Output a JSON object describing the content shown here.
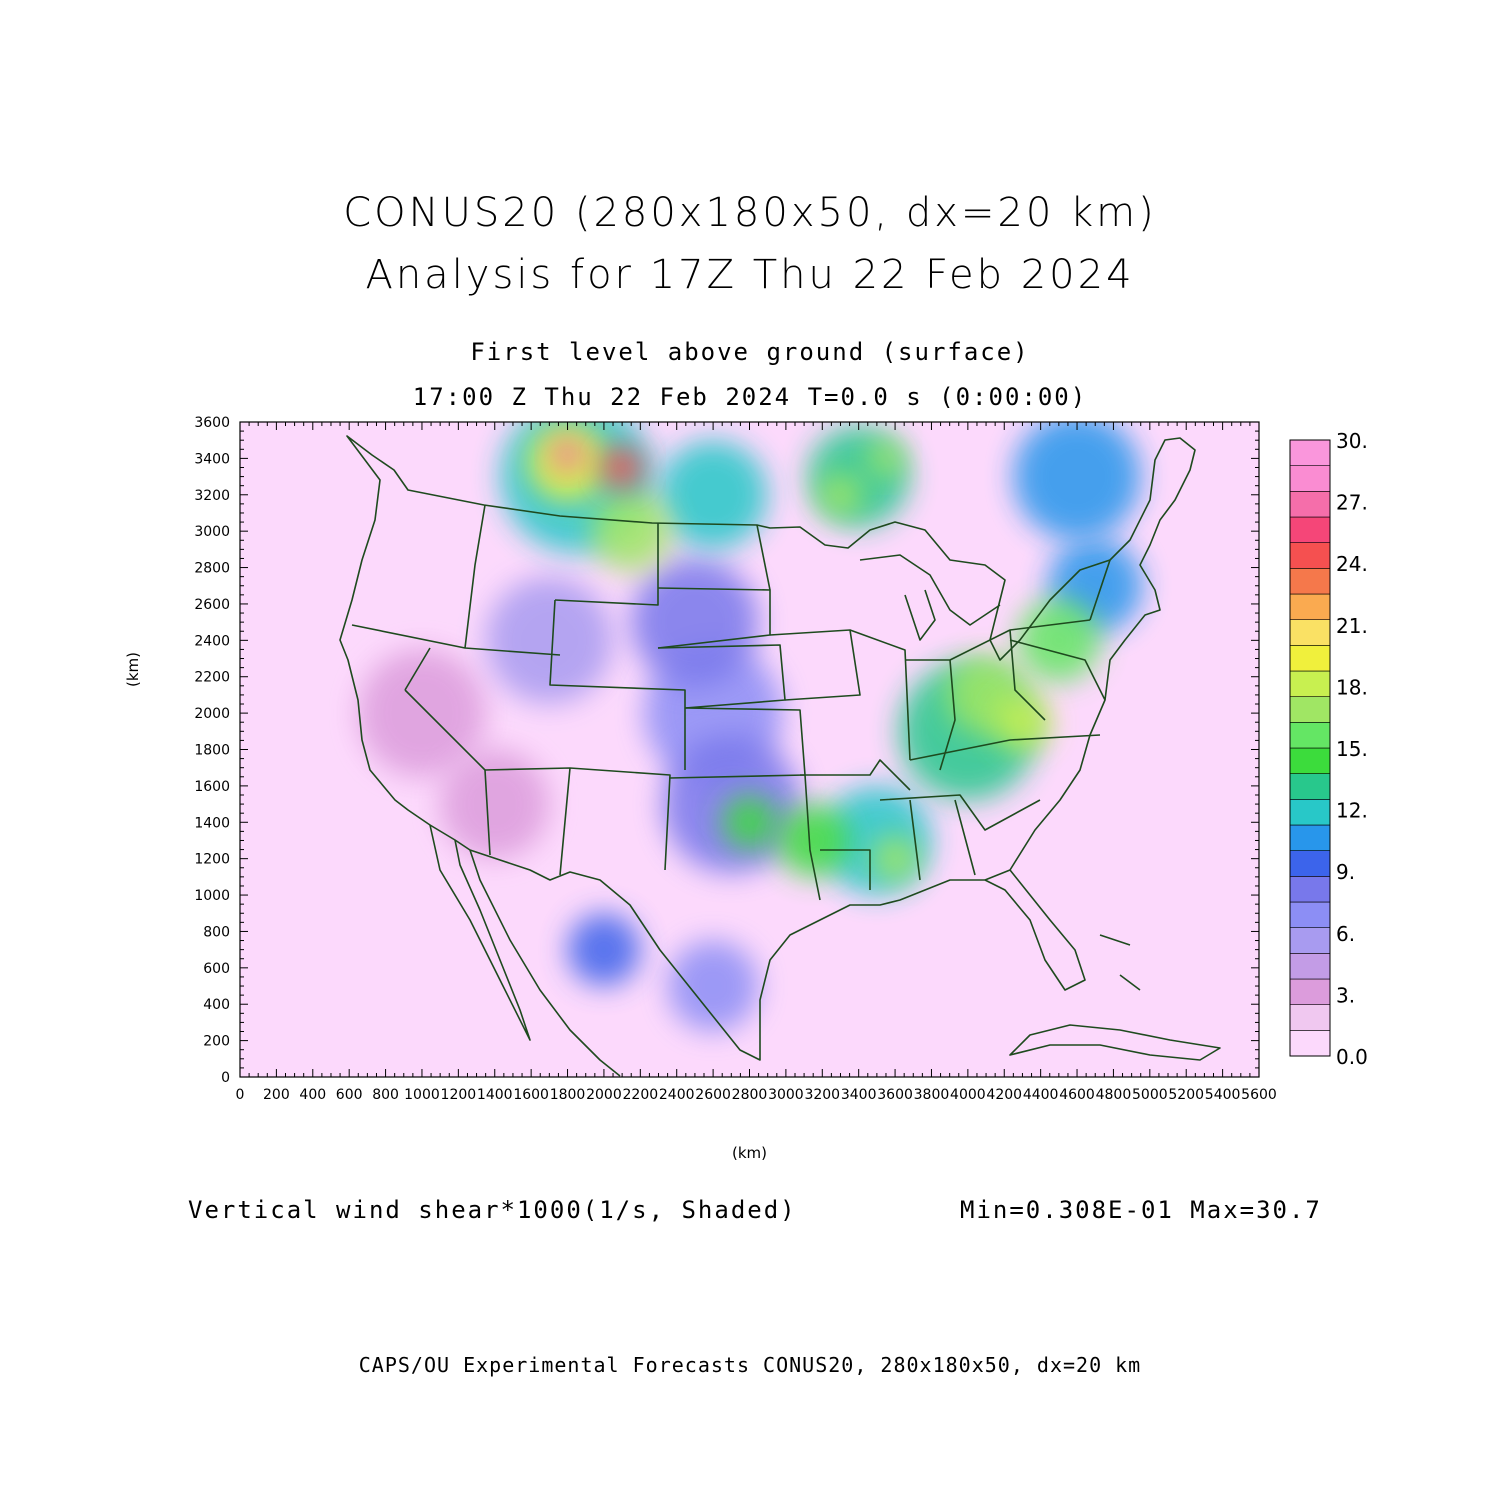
{
  "header": {
    "title_line1": "CONUS20 (280x180x50, dx=20 km)",
    "title_line2": "Analysis for 17Z Thu 22 Feb 2024",
    "subtitle_level": "First level above ground (surface)",
    "subtitle_time": "17:00 Z Thu 22 Feb 2024   T=0.0 s (0:00:00)"
  },
  "map": {
    "x_axis_label": "(km)",
    "y_axis_label": "(km)",
    "x_ticks": [
      0,
      200,
      400,
      600,
      800,
      1000,
      1200,
      1400,
      1600,
      1800,
      2000,
      2200,
      2400,
      2600,
      2800,
      3000,
      3200,
      3400,
      3600,
      3800,
      4000,
      4200,
      4400,
      4600,
      4800,
      5000,
      5200,
      5400,
      5600
    ],
    "y_ticks": [
      0,
      200,
      400,
      600,
      800,
      1000,
      1200,
      1400,
      1600,
      1800,
      2000,
      2200,
      2400,
      2600,
      2800,
      3000,
      3200,
      3400,
      3600
    ],
    "x_range": [
      0,
      5600
    ],
    "y_range": [
      0,
      3600
    ],
    "boundary_color": "#1e4a1e",
    "background_color": "#fcd9fc",
    "field_blobs": [
      {
        "x": 1850,
        "y": 3300,
        "r": 420,
        "level": 12
      },
      {
        "x": 1800,
        "y": 3380,
        "r": 220,
        "level": 19
      },
      {
        "x": 1800,
        "y": 3420,
        "r": 90,
        "level": 28
      },
      {
        "x": 2100,
        "y": 3350,
        "r": 120,
        "level": 25
      },
      {
        "x": 2150,
        "y": 3000,
        "r": 220,
        "level": 17
      },
      {
        "x": 2600,
        "y": 3200,
        "r": 300,
        "level": 12
      },
      {
        "x": 3400,
        "y": 3300,
        "r": 280,
        "level": 13
      },
      {
        "x": 3300,
        "y": 3200,
        "r": 120,
        "level": 17
      },
      {
        "x": 3550,
        "y": 3400,
        "r": 100,
        "level": 17
      },
      {
        "x": 4600,
        "y": 3300,
        "r": 350,
        "level": 11
      },
      {
        "x": 2500,
        "y": 2500,
        "r": 350,
        "level": 8
      },
      {
        "x": 2600,
        "y": 2000,
        "r": 380,
        "level": 7
      },
      {
        "x": 2700,
        "y": 1500,
        "r": 380,
        "level": 8
      },
      {
        "x": 2800,
        "y": 1400,
        "r": 150,
        "level": 14
      },
      {
        "x": 3150,
        "y": 1300,
        "r": 200,
        "level": 14
      },
      {
        "x": 3500,
        "y": 1300,
        "r": 300,
        "level": 12
      },
      {
        "x": 3600,
        "y": 1200,
        "r": 130,
        "level": 17
      },
      {
        "x": 4000,
        "y": 1900,
        "r": 380,
        "level": 13
      },
      {
        "x": 4100,
        "y": 2100,
        "r": 220,
        "level": 17
      },
      {
        "x": 4300,
        "y": 1950,
        "r": 160,
        "level": 18
      },
      {
        "x": 4500,
        "y": 2400,
        "r": 230,
        "level": 15
      },
      {
        "x": 4700,
        "y": 2700,
        "r": 260,
        "level": 10
      },
      {
        "x": 2000,
        "y": 700,
        "r": 200,
        "level": 9
      },
      {
        "x": 2600,
        "y": 500,
        "r": 250,
        "level": 7
      },
      {
        "x": 1700,
        "y": 2400,
        "r": 350,
        "level": 5
      },
      {
        "x": 1000,
        "y": 2000,
        "r": 350,
        "level": 3
      },
      {
        "x": 1400,
        "y": 1500,
        "r": 300,
        "level": 3
      }
    ]
  },
  "colorbar": {
    "labels": [
      "30.",
      "27.",
      "24.",
      "21.",
      "18.",
      "15.",
      "12.",
      "9.",
      "6.",
      "3.",
      "0.0"
    ],
    "colors": [
      "#fcd9fc",
      "#f0c8f0",
      "#dc9cdc",
      "#c39ce6",
      "#a89bf0",
      "#8c8ef5",
      "#7878eb",
      "#3c64eb",
      "#2896eb",
      "#28c8c8",
      "#28c88c",
      "#3cdc3c",
      "#64e664",
      "#a0e664",
      "#c8f050",
      "#f0f03c",
      "#fae164",
      "#faaa50",
      "#f5784b",
      "#f55050",
      "#f54678",
      "#f56eaa",
      "#fa8cd2",
      "#fa96dc"
    ],
    "min": 0,
    "max": 30
  },
  "footer": {
    "variable_label": "Vertical wind shear*1000(1/s, Shaded)",
    "min_max": "Min=0.308E-01 Max=30.7",
    "credit": "CAPS/OU Experimental Forecasts  CONUS20, 280x180x50, dx=20 km"
  }
}
